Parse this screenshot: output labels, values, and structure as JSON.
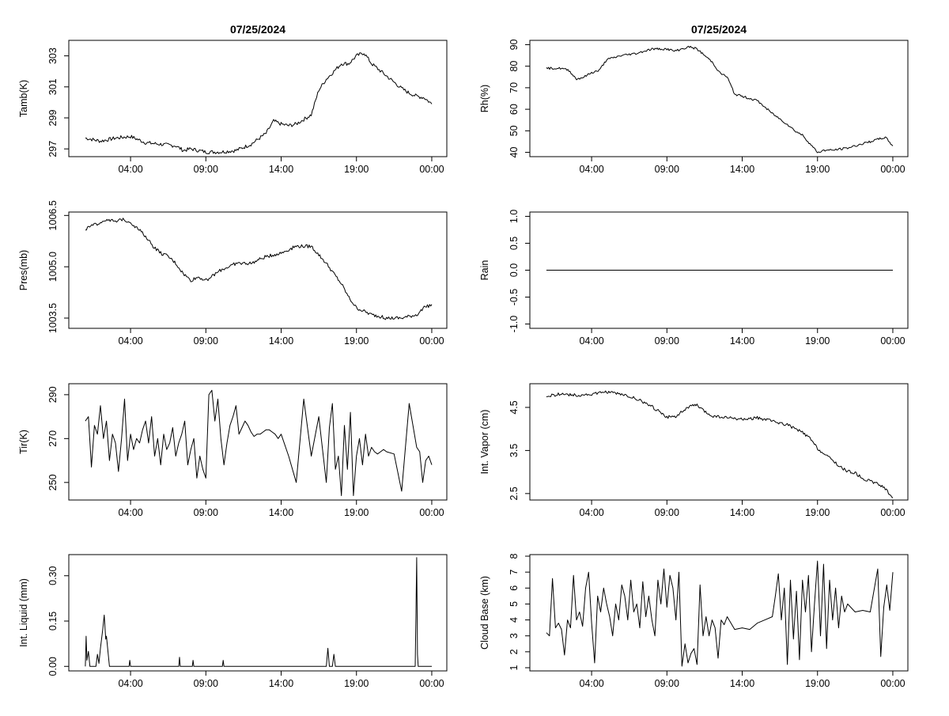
{
  "colors": {
    "background": "#ffffff",
    "line": "#000000",
    "axis": "#000000"
  },
  "titles": {
    "left": "07/25/2024",
    "right": "07/25/2024"
  },
  "chart_data": [
    {
      "id": "tamb",
      "type": "line",
      "ylabel": "Tamb(K)",
      "xticks": [
        "04:00",
        "09:00",
        "14:00",
        "19:00",
        "00:00"
      ],
      "xtick_hours": [
        4,
        9,
        14,
        19,
        24
      ],
      "xlim": [
        -0.1,
        25
      ],
      "ylim": [
        296.5,
        304
      ],
      "yticks": [
        "297",
        "299",
        "301",
        "303"
      ],
      "ytick_values": [
        297,
        299,
        301,
        303
      ],
      "noise": 0.12,
      "x": [
        1.0,
        2.0,
        3.0,
        4.0,
        5.0,
        6.0,
        7.0,
        7.5,
        8.0,
        9.0,
        10.0,
        11.0,
        12.0,
        13.0,
        13.5,
        14.0,
        14.5,
        15.0,
        16.0,
        16.5,
        17.0,
        17.5,
        18.0,
        18.5,
        19.0,
        19.5,
        20.0,
        21.0,
        22.0,
        22.5,
        23.0,
        23.5,
        24.0
      ],
      "y": [
        297.7,
        297.5,
        297.7,
        297.8,
        297.4,
        297.3,
        297.2,
        296.9,
        297.0,
        296.8,
        296.8,
        296.9,
        297.3,
        298.0,
        298.8,
        298.6,
        298.5,
        298.6,
        299.2,
        300.8,
        301.5,
        302.0,
        302.5,
        302.5,
        303.0,
        303.2,
        302.5,
        301.7,
        300.9,
        300.6,
        300.4,
        300.3,
        299.9
      ]
    },
    {
      "id": "rh",
      "type": "line",
      "ylabel": "Rh(%)",
      "xticks": [
        "04:00",
        "09:00",
        "14:00",
        "19:00",
        "00:00"
      ],
      "xtick_hours": [
        4,
        9,
        14,
        19,
        24
      ],
      "xlim": [
        -0.1,
        25
      ],
      "ylim": [
        38,
        92
      ],
      "yticks": [
        "40",
        "50",
        "60",
        "70",
        "80",
        "90"
      ],
      "ytick_values": [
        40,
        50,
        60,
        70,
        80,
        90
      ],
      "noise": 0.5,
      "x": [
        1.0,
        2.0,
        2.5,
        3.0,
        3.5,
        4.0,
        4.5,
        5.0,
        6.0,
        7.0,
        8.0,
        8.5,
        9.0,
        9.5,
        10.0,
        10.5,
        11.0,
        11.5,
        12.0,
        12.5,
        13.0,
        13.5,
        14.0,
        15.0,
        16.0,
        17.0,
        17.5,
        18.0,
        18.5,
        19.0,
        19.5,
        20.0,
        21.0,
        22.0,
        23.0,
        23.5,
        24.0
      ],
      "y": [
        79.0,
        79.0,
        78.0,
        74.0,
        75.0,
        77.0,
        78.0,
        83.0,
        85.0,
        86.0,
        88.0,
        88.0,
        88.0,
        87.0,
        88.0,
        89.0,
        88.0,
        85.0,
        82.0,
        77.0,
        75.0,
        67.0,
        66.0,
        64.0,
        58.0,
        53.0,
        50.0,
        48.0,
        44.0,
        40.0,
        41.0,
        41.0,
        42.0,
        44.0,
        46.0,
        47.0,
        43.0
      ]
    },
    {
      "id": "pres",
      "type": "line",
      "ylabel": "Pres(mb)",
      "xticks": [
        "04:00",
        "09:00",
        "14:00",
        "19:00",
        "00:00"
      ],
      "xtick_hours": [
        4,
        9,
        14,
        19,
        24
      ],
      "xlim": [
        -0.1,
        25
      ],
      "ylim": [
        1003.2,
        1006.6
      ],
      "yticks": [
        "1003.5",
        "1005.0",
        "1006.5"
      ],
      "ytick_values": [
        1003.5,
        1005.0,
        1006.5
      ],
      "noise": 0.05,
      "x": [
        1.0,
        1.5,
        2.0,
        2.5,
        3.0,
        3.5,
        4.0,
        4.5,
        5.0,
        5.5,
        6.0,
        6.5,
        7.0,
        7.5,
        8.0,
        8.5,
        9.0,
        10.0,
        11.0,
        12.0,
        13.0,
        14.0,
        15.0,
        16.0,
        17.0,
        17.5,
        18.0,
        18.5,
        19.0,
        20.0,
        21.0,
        22.0,
        23.0,
        23.5,
        24.0
      ],
      "y": [
        1006.1,
        1006.2,
        1006.3,
        1006.4,
        1006.3,
        1006.4,
        1006.3,
        1006.1,
        1005.9,
        1005.6,
        1005.4,
        1005.3,
        1005.1,
        1004.8,
        1004.6,
        1004.7,
        1004.6,
        1004.9,
        1005.1,
        1005.1,
        1005.3,
        1005.4,
        1005.6,
        1005.6,
        1005.1,
        1004.8,
        1004.5,
        1004.1,
        1003.8,
        1003.6,
        1003.5,
        1003.5,
        1003.6,
        1003.8,
        1003.9
      ]
    },
    {
      "id": "rain",
      "type": "line",
      "ylabel": "Rain",
      "xticks": [
        "04:00",
        "09:00",
        "14:00",
        "19:00",
        "00:00"
      ],
      "xtick_hours": [
        4,
        9,
        14,
        19,
        24
      ],
      "xlim": [
        -0.1,
        25
      ],
      "ylim": [
        -1.08,
        1.08
      ],
      "yticks": [
        "-1.0",
        "-0.5",
        "0.0",
        "0.5",
        "1.0"
      ],
      "ytick_values": [
        -1.0,
        -0.5,
        0.0,
        0.5,
        1.0
      ],
      "noise": 0,
      "x": [
        1.0,
        24.0
      ],
      "y": [
        0.0,
        0.0
      ]
    },
    {
      "id": "tir",
      "type": "line",
      "ylabel": "Tir(K)",
      "xticks": [
        "04:00",
        "09:00",
        "14:00",
        "19:00",
        "00:00"
      ],
      "xtick_hours": [
        4,
        9,
        14,
        19,
        24
      ],
      "xlim": [
        -0.1,
        25
      ],
      "ylim": [
        242,
        295
      ],
      "yticks": [
        "250",
        "270",
        "290"
      ],
      "ytick_values": [
        250,
        270,
        290
      ],
      "noise": 0,
      "x": [
        1.0,
        1.2,
        1.4,
        1.6,
        1.8,
        2.0,
        2.2,
        2.4,
        2.6,
        2.8,
        3.0,
        3.2,
        3.4,
        3.6,
        3.8,
        4.0,
        4.2,
        4.4,
        4.6,
        4.8,
        5.0,
        5.2,
        5.4,
        5.6,
        5.8,
        6.0,
        6.2,
        6.4,
        6.6,
        6.8,
        7.0,
        7.2,
        7.4,
        7.6,
        7.8,
        8.0,
        8.2,
        8.4,
        8.6,
        8.8,
        9.0,
        9.2,
        9.4,
        9.6,
        9.8,
        10.0,
        10.2,
        10.4,
        10.6,
        10.8,
        11.0,
        11.2,
        11.4,
        11.6,
        11.8,
        12.0,
        12.2,
        12.4,
        12.6,
        12.8,
        13.0,
        13.2,
        13.4,
        13.6,
        13.8,
        14.0,
        14.5,
        15.0,
        15.5,
        16.0,
        16.5,
        17.0,
        17.2,
        17.4,
        17.6,
        17.8,
        18.0,
        18.2,
        18.4,
        18.6,
        18.8,
        19.0,
        19.2,
        19.4,
        19.6,
        19.8,
        20.0,
        20.2,
        20.4,
        20.6,
        20.8,
        21.0,
        21.5,
        22.0,
        22.5,
        23.0,
        23.2,
        23.4,
        23.6,
        23.8,
        24.0
      ],
      "y": [
        278,
        280,
        257,
        276,
        272,
        285,
        270,
        278,
        260,
        272,
        268,
        255,
        270,
        288,
        260,
        272,
        265,
        270,
        268,
        274,
        278,
        268,
        280,
        262,
        270,
        258,
        272,
        265,
        268,
        275,
        262,
        268,
        272,
        278,
        258,
        265,
        270,
        252,
        262,
        256,
        252,
        290,
        292,
        278,
        288,
        270,
        258,
        268,
        276,
        280,
        285,
        272,
        275,
        278,
        276,
        273,
        271,
        272,
        272,
        273,
        274,
        274,
        273,
        272,
        270,
        272,
        262,
        250,
        288,
        262,
        280,
        250,
        275,
        286,
        256,
        262,
        244,
        276,
        256,
        282,
        244,
        262,
        270,
        258,
        272,
        262,
        266,
        264,
        263,
        264,
        265,
        264,
        263,
        246,
        286,
        266,
        264,
        250,
        260,
        262,
        258
      ]
    },
    {
      "id": "vapor",
      "type": "line",
      "ylabel": "Int. Vapor (cm)",
      "xticks": [
        "04:00",
        "09:00",
        "14:00",
        "19:00",
        "00:00"
      ],
      "xtick_hours": [
        4,
        9,
        14,
        19,
        24
      ],
      "xlim": [
        -0.1,
        25
      ],
      "ylim": [
        2.35,
        5.05
      ],
      "yticks": [
        "2.5",
        "3.5",
        "4.5"
      ],
      "ytick_values": [
        2.5,
        3.5,
        4.5
      ],
      "noise": 0.035,
      "x": [
        1.0,
        2.0,
        3.0,
        4.0,
        5.0,
        6.0,
        7.0,
        8.0,
        9.0,
        9.5,
        10.0,
        10.5,
        11.0,
        11.5,
        12.0,
        13.0,
        14.0,
        15.0,
        16.0,
        17.0,
        18.0,
        18.5,
        19.0,
        19.5,
        20.0,
        20.5,
        21.0,
        21.5,
        22.0,
        23.0,
        23.5,
        24.0
      ],
      "y": [
        4.75,
        4.82,
        4.78,
        4.8,
        4.86,
        4.8,
        4.7,
        4.52,
        4.28,
        4.28,
        4.4,
        4.52,
        4.55,
        4.4,
        4.3,
        4.26,
        4.22,
        4.26,
        4.18,
        4.1,
        3.92,
        3.78,
        3.55,
        3.4,
        3.28,
        3.12,
        3.02,
        2.98,
        2.85,
        2.72,
        2.62,
        2.4
      ]
    },
    {
      "id": "liquid",
      "type": "line",
      "ylabel": "Int. Liquid (mm)",
      "xticks": [
        "04:00",
        "09:00",
        "14:00",
        "19:00",
        "00:00"
      ],
      "xtick_hours": [
        4,
        9,
        14,
        19,
        24
      ],
      "xlim": [
        -0.1,
        25
      ],
      "ylim": [
        -0.015,
        0.37
      ],
      "yticks": [
        "0.00",
        "0.15",
        "0.30"
      ],
      "ytick_values": [
        0.0,
        0.15,
        0.3
      ],
      "noise": 0,
      "x": [
        1.0,
        1.05,
        1.1,
        1.2,
        1.3,
        1.7,
        1.8,
        1.9,
        2.0,
        2.15,
        2.25,
        2.35,
        2.4,
        2.5,
        2.6,
        3.0,
        3.9,
        3.95,
        4.0,
        7.2,
        7.25,
        7.3,
        8.1,
        8.15,
        8.2,
        10.1,
        10.15,
        10.2,
        17.0,
        17.1,
        17.2,
        17.4,
        17.5,
        17.6,
        22.0,
        22.9,
        22.95,
        23.0,
        23.05,
        23.1,
        24.0
      ],
      "y": [
        0.0,
        0.1,
        0.02,
        0.05,
        0.0,
        0.0,
        0.04,
        0.01,
        0.06,
        0.12,
        0.17,
        0.09,
        0.1,
        0.05,
        0.0,
        0.0,
        0.0,
        0.02,
        0.0,
        0.0,
        0.03,
        0.0,
        0.0,
        0.02,
        0.0,
        0.0,
        0.02,
        0.0,
        0.0,
        0.06,
        0.0,
        0.0,
        0.04,
        0.0,
        0.0,
        0.0,
        0.18,
        0.36,
        0.04,
        0.0,
        0.0
      ]
    },
    {
      "id": "cloud",
      "type": "line",
      "ylabel": "Cloud Base (km)",
      "xticks": [
        "04:00",
        "09:00",
        "14:00",
        "19:00",
        "00:00"
      ],
      "xtick_hours": [
        4,
        9,
        14,
        19,
        24
      ],
      "xlim": [
        -0.1,
        25
      ],
      "ylim": [
        0.8,
        8.1
      ],
      "yticks": [
        "1",
        "2",
        "3",
        "4",
        "5",
        "6",
        "7",
        "8"
      ],
      "ytick_values": [
        1,
        2,
        3,
        4,
        5,
        6,
        7,
        8
      ],
      "noise": 0,
      "x": [
        1.0,
        1.2,
        1.4,
        1.6,
        1.8,
        2.0,
        2.2,
        2.4,
        2.6,
        2.8,
        3.0,
        3.2,
        3.4,
        3.6,
        3.8,
        4.0,
        4.2,
        4.4,
        4.6,
        4.8,
        5.0,
        5.2,
        5.4,
        5.6,
        5.8,
        6.0,
        6.2,
        6.4,
        6.6,
        6.8,
        7.0,
        7.2,
        7.4,
        7.6,
        7.8,
        8.0,
        8.2,
        8.4,
        8.6,
        8.8,
        9.0,
        9.2,
        9.4,
        9.6,
        9.8,
        10.0,
        10.2,
        10.4,
        10.6,
        10.8,
        11.0,
        11.2,
        11.4,
        11.6,
        11.8,
        12.0,
        12.2,
        12.4,
        12.6,
        12.8,
        13.0,
        13.5,
        14.0,
        14.5,
        15.0,
        15.5,
        16.0,
        16.2,
        16.4,
        16.6,
        16.8,
        17.0,
        17.2,
        17.4,
        17.6,
        17.8,
        18.0,
        18.2,
        18.4,
        18.6,
        18.8,
        19.0,
        19.2,
        19.4,
        19.6,
        19.8,
        20.0,
        20.2,
        20.4,
        20.6,
        20.8,
        21.0,
        21.5,
        22.0,
        22.5,
        23.0,
        23.2,
        23.4,
        23.6,
        23.8,
        24.0
      ],
      "y": [
        3.2,
        3.0,
        6.6,
        3.5,
        3.8,
        3.4,
        1.8,
        4.0,
        3.5,
        6.8,
        4.0,
        4.5,
        3.6,
        6.0,
        7.0,
        3.8,
        1.3,
        5.5,
        4.5,
        6.0,
        5.0,
        4.2,
        3.0,
        5.0,
        4.0,
        6.2,
        5.5,
        4.0,
        6.5,
        4.5,
        5.0,
        3.5,
        6.4,
        4.2,
        5.5,
        4.0,
        3.0,
        6.5,
        5.0,
        7.2,
        4.8,
        6.8,
        6.0,
        4.0,
        7.0,
        1.1,
        2.5,
        1.3,
        1.9,
        2.2,
        1.2,
        6.2,
        3.0,
        4.2,
        3.0,
        4.0,
        3.5,
        1.6,
        4.0,
        3.7,
        4.2,
        3.4,
        3.5,
        3.4,
        3.8,
        4.0,
        4.2,
        5.5,
        6.9,
        4.0,
        6.0,
        1.2,
        6.5,
        2.8,
        5.8,
        1.5,
        6.5,
        4.5,
        6.8,
        2.0,
        5.0,
        7.7,
        3.0,
        7.5,
        2.2,
        6.5,
        4.0,
        6.0,
        3.5,
        5.5,
        4.5,
        5.0,
        4.5,
        4.6,
        4.5,
        7.2,
        1.7,
        4.8,
        6.2,
        4.6,
        7.0
      ]
    }
  ]
}
